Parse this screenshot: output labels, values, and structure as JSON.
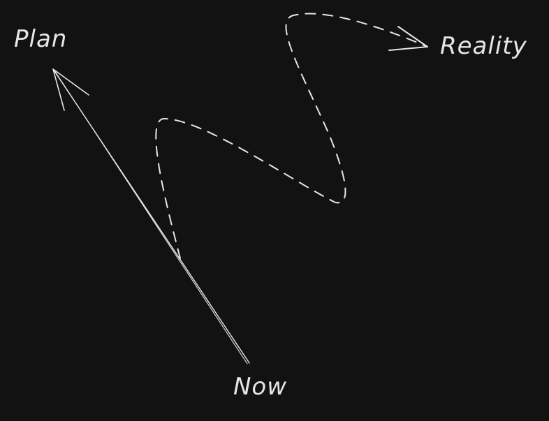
{
  "labels": {
    "plan": "Plan",
    "reality": "Reality",
    "now": "Now"
  },
  "colors": {
    "background": "#121212",
    "stroke": "#e6e6e6"
  }
}
